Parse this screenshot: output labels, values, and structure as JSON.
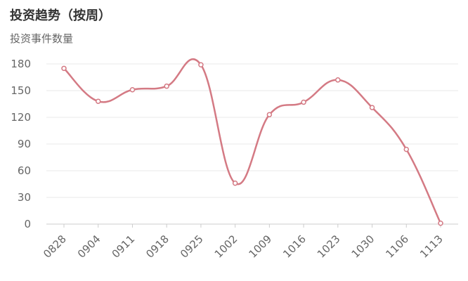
{
  "chart_data": {
    "type": "line",
    "title": "投资趋势（按周）",
    "ylabel": "投资事件数量",
    "xlabel": "",
    "categories": [
      "0828",
      "0904",
      "0911",
      "0918",
      "0925",
      "1002",
      "1009",
      "1016",
      "1023",
      "1030",
      "1106",
      "1113"
    ],
    "series": [
      {
        "values": [
          175,
          138,
          151,
          155,
          179,
          46,
          123,
          137,
          162,
          131,
          84,
          1
        ]
      }
    ],
    "ylim": [
      0,
      180
    ],
    "yticks": [
      0,
      30,
      60,
      90,
      120,
      150,
      180
    ],
    "grid": true,
    "smooth": true,
    "line_color": "#d47a84"
  }
}
